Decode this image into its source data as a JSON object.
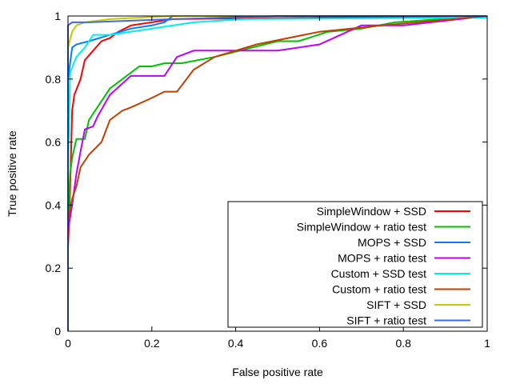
{
  "chart_data": {
    "type": "line",
    "title": "",
    "xlabel": "False positive rate",
    "ylabel": "True positive rate",
    "xlim": [
      0,
      1
    ],
    "ylim": [
      0,
      1
    ],
    "xticks": [
      "0",
      "0.2",
      "0.4",
      "0.6",
      "0.8",
      "1"
    ],
    "yticks": [
      "0",
      "0.2",
      "0.4",
      "0.6",
      "0.8",
      "1"
    ],
    "grid": false,
    "legend_position": "bottom-right",
    "series": [
      {
        "name": "SimpleWindow + SSD",
        "color": "#ff0000",
        "points": [
          [
            0,
            0.26
          ],
          [
            0.005,
            0.45
          ],
          [
            0.01,
            0.7
          ],
          [
            0.015,
            0.75
          ],
          [
            0.03,
            0.8
          ],
          [
            0.04,
            0.86
          ],
          [
            0.06,
            0.89
          ],
          [
            0.08,
            0.92
          ],
          [
            0.1,
            0.93
          ],
          [
            0.12,
            0.95
          ],
          [
            0.15,
            0.97
          ],
          [
            0.25,
            0.99
          ],
          [
            0.6,
            0.995
          ],
          [
            1,
            1
          ]
        ]
      },
      {
        "name": "SimpleWindow + ratio test",
        "color": "#00c000",
        "points": [
          [
            0,
            0.33
          ],
          [
            0.005,
            0.5
          ],
          [
            0.01,
            0.55
          ],
          [
            0.02,
            0.61
          ],
          [
            0.04,
            0.61
          ],
          [
            0.05,
            0.67
          ],
          [
            0.06,
            0.69
          ],
          [
            0.08,
            0.73
          ],
          [
            0.1,
            0.77
          ],
          [
            0.13,
            0.8
          ],
          [
            0.17,
            0.84
          ],
          [
            0.2,
            0.84
          ],
          [
            0.23,
            0.85
          ],
          [
            0.27,
            0.85
          ],
          [
            0.35,
            0.87
          ],
          [
            0.5,
            0.92
          ],
          [
            0.55,
            0.92
          ],
          [
            0.62,
            0.95
          ],
          [
            0.7,
            0.96
          ],
          [
            0.78,
            0.98
          ],
          [
            1,
            1
          ]
        ]
      },
      {
        "name": "MOPS + SSD",
        "color": "#0080ff",
        "points": [
          [
            0,
            0.8
          ],
          [
            0.01,
            0.9
          ],
          [
            0.02,
            0.91
          ],
          [
            0.05,
            0.92
          ],
          [
            0.1,
            0.94
          ],
          [
            0.15,
            0.96
          ],
          [
            0.2,
            0.97
          ],
          [
            0.23,
            0.98
          ],
          [
            0.25,
            1
          ],
          [
            1,
            1
          ]
        ]
      },
      {
        "name": "MOPS + ratio test",
        "color": "#c000ff",
        "points": [
          [
            0,
            0.32
          ],
          [
            0.01,
            0.4
          ],
          [
            0.02,
            0.5
          ],
          [
            0.03,
            0.57
          ],
          [
            0.04,
            0.64
          ],
          [
            0.06,
            0.65
          ],
          [
            0.07,
            0.68
          ],
          [
            0.1,
            0.75
          ],
          [
            0.15,
            0.81
          ],
          [
            0.23,
            0.81
          ],
          [
            0.26,
            0.87
          ],
          [
            0.3,
            0.89
          ],
          [
            0.5,
            0.89
          ],
          [
            0.6,
            0.91
          ],
          [
            0.7,
            0.97
          ],
          [
            0.8,
            0.97
          ],
          [
            1,
            1
          ]
        ]
      },
      {
        "name": "Custom + SSD test",
        "color": "#00eeee",
        "points": [
          [
            0,
            0.5
          ],
          [
            0.005,
            0.82
          ],
          [
            0.02,
            0.87
          ],
          [
            0.04,
            0.9
          ],
          [
            0.06,
            0.94
          ],
          [
            0.1,
            0.94
          ],
          [
            0.2,
            0.96
          ],
          [
            0.3,
            0.98
          ],
          [
            0.42,
            0.99
          ],
          [
            1,
            0.995
          ]
        ]
      },
      {
        "name": "Custom + ratio test",
        "color": "#c04000",
        "points": [
          [
            0,
            0.35
          ],
          [
            0.01,
            0.42
          ],
          [
            0.02,
            0.46
          ],
          [
            0.03,
            0.52
          ],
          [
            0.05,
            0.56
          ],
          [
            0.08,
            0.6
          ],
          [
            0.1,
            0.67
          ],
          [
            0.13,
            0.7
          ],
          [
            0.15,
            0.71
          ],
          [
            0.2,
            0.74
          ],
          [
            0.23,
            0.76
          ],
          [
            0.26,
            0.76
          ],
          [
            0.3,
            0.83
          ],
          [
            0.35,
            0.87
          ],
          [
            0.45,
            0.91
          ],
          [
            0.6,
            0.95
          ],
          [
            0.75,
            0.97
          ],
          [
            1,
            1
          ]
        ]
      },
      {
        "name": "SIFT + SSD",
        "color": "#c8c800",
        "points": [
          [
            0,
            0.9
          ],
          [
            0.01,
            0.95
          ],
          [
            0.02,
            0.97
          ],
          [
            0.04,
            0.98
          ],
          [
            0.1,
            0.99
          ],
          [
            0.25,
            1
          ],
          [
            1,
            1
          ]
        ]
      },
      {
        "name": "SIFT + ratio test",
        "color": "#4169e1",
        "points": [
          [
            0,
            0
          ],
          [
            0,
            0.97
          ],
          [
            0.01,
            0.98
          ],
          [
            0.05,
            0.98
          ],
          [
            0.25,
            0.99
          ],
          [
            0.5,
            1
          ],
          [
            1,
            1
          ]
        ]
      }
    ]
  }
}
